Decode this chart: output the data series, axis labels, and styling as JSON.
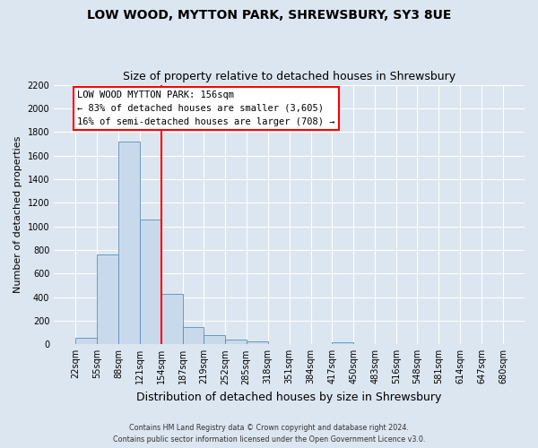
{
  "title": "LOW WOOD, MYTTON PARK, SHREWSBURY, SY3 8UE",
  "subtitle": "Size of property relative to detached houses in Shrewsbury",
  "xlabel": "Distribution of detached houses by size in Shrewsbury",
  "ylabel": "Number of detached properties",
  "bar_edges": [
    22,
    55,
    88,
    121,
    154,
    187,
    219,
    252,
    285,
    318,
    351,
    384,
    417,
    450,
    483,
    516,
    548,
    581,
    614,
    647,
    680
  ],
  "bar_heights": [
    55,
    760,
    1720,
    1060,
    430,
    145,
    80,
    40,
    25,
    5,
    5,
    5,
    20,
    5,
    5,
    5,
    5,
    5,
    5,
    5
  ],
  "bar_color": "#c9d9ec",
  "bar_edge_color": "#5b8db8",
  "vline_x": 154,
  "vline_color": "red",
  "vline_lw": 1.5,
  "ylim": [
    0,
    2200
  ],
  "yticks": [
    0,
    200,
    400,
    600,
    800,
    1000,
    1200,
    1400,
    1600,
    1800,
    2000,
    2200
  ],
  "annotation_title": "LOW WOOD MYTTON PARK: 156sqm",
  "annotation_line1": "← 83% of detached houses are smaller (3,605)",
  "annotation_line2": "16% of semi-detached houses are larger (708) →",
  "bg_color": "#dce6f0",
  "plot_bg_color": "#dce6f0",
  "grid_color": "white",
  "title_fontsize": 10,
  "subtitle_fontsize": 9,
  "xlabel_fontsize": 9,
  "ylabel_fontsize": 8,
  "tick_fontsize": 7,
  "ytick_fontsize": 7,
  "footnote1": "Contains HM Land Registry data © Crown copyright and database right 2024.",
  "footnote2": "Contains public sector information licensed under the Open Government Licence v3.0."
}
